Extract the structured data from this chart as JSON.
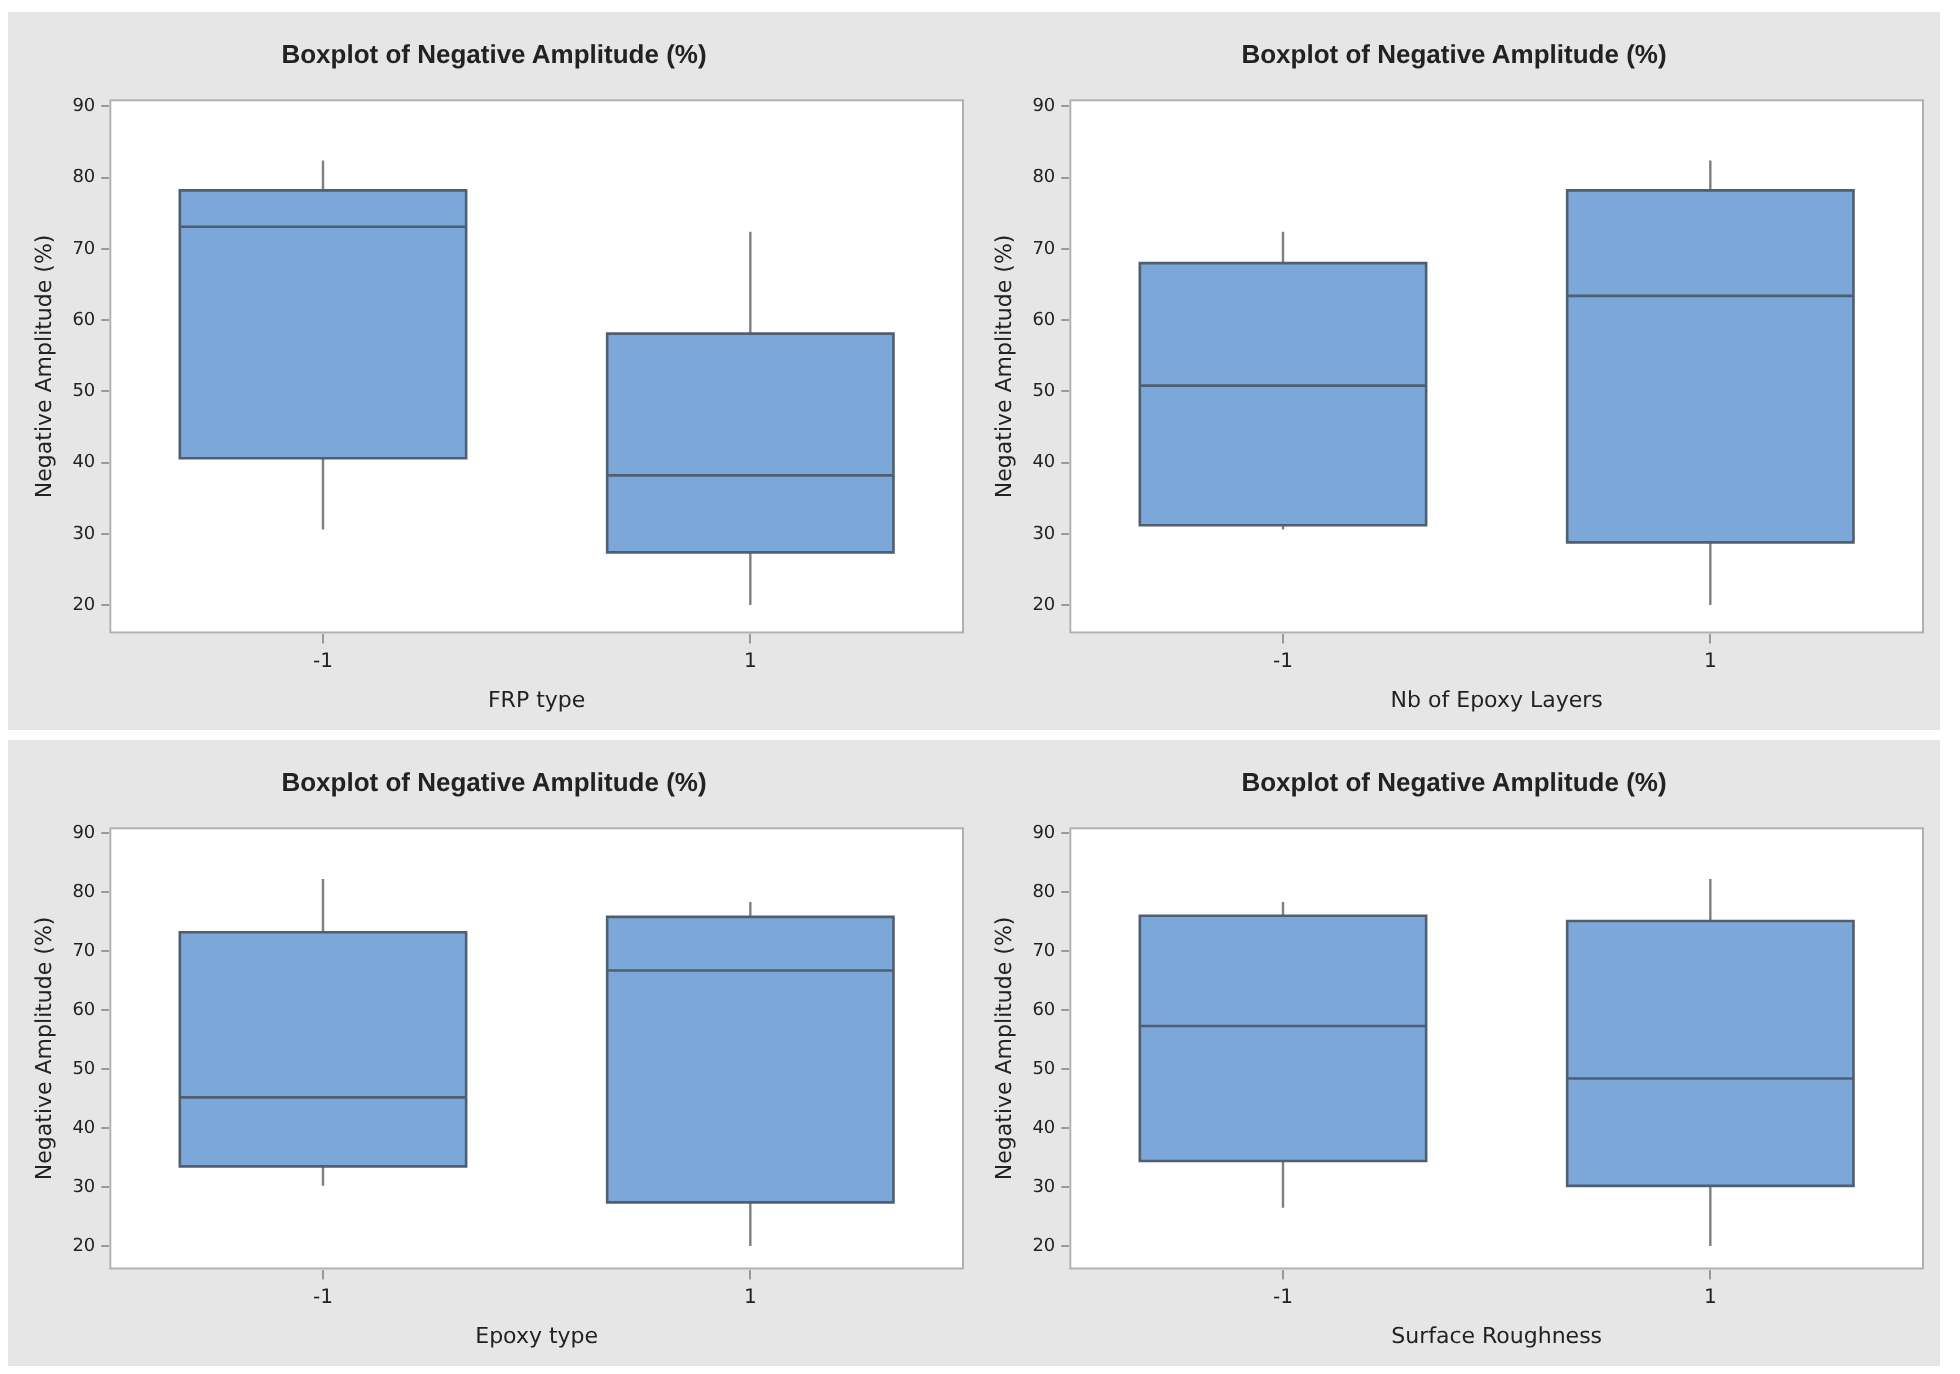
{
  "chart_data": [
    {
      "type": "box",
      "title": "Boxplot of Negative Amplitude (%)",
      "xlabel": "FRP type",
      "ylabel": "Negative Amplitude (%)",
      "categories": [
        "-1",
        "1"
      ],
      "ylim": [
        16,
        91
      ],
      "yticks": [
        20,
        30,
        40,
        50,
        60,
        70,
        80,
        90
      ],
      "grid": false,
      "legend": false,
      "series": [
        {
          "color": "#7ba7d9",
          "boxes": [
            {
              "low": 30.6,
              "q1": 40.6,
              "median": 73.1,
              "q3": 78.2,
              "high": 82.4
            },
            {
              "low": 20,
              "q1": 27.4,
              "median": 38.2,
              "q3": 58.1,
              "high": 72.4
            }
          ]
        }
      ]
    },
    {
      "type": "box",
      "title": "Boxplot of Negative Amplitude (%)",
      "xlabel": "Nb of Epoxy Layers",
      "ylabel": "Negative Amplitude (%)",
      "categories": [
        "-1",
        "1"
      ],
      "ylim": [
        16,
        91
      ],
      "yticks": [
        20,
        30,
        40,
        50,
        60,
        70,
        80,
        90
      ],
      "grid": false,
      "legend": false,
      "series": [
        {
          "color": "#7ba7d9",
          "boxes": [
            {
              "low": 30.6,
              "q1": 31.2,
              "median": 50.8,
              "q3": 68,
              "high": 72.4
            },
            {
              "low": 20,
              "q1": 28.8,
              "median": 63.4,
              "q3": 78.2,
              "high": 82.4
            }
          ]
        }
      ]
    },
    {
      "type": "box",
      "title": "Boxplot of Negative Amplitude (%)",
      "xlabel": "Epoxy type",
      "ylabel": "Negative Amplitude (%)",
      "categories": [
        "-1",
        "1"
      ],
      "ylim": [
        16,
        91
      ],
      "yticks": [
        20,
        30,
        40,
        50,
        60,
        70,
        80,
        90
      ],
      "grid": false,
      "legend": false,
      "series": [
        {
          "color": "#7ba7d9",
          "boxes": [
            {
              "low": 30.2,
              "q1": 33.5,
              "median": 45.2,
              "q3": 73.2,
              "high": 82.2
            },
            {
              "low": 20,
              "q1": 27.4,
              "median": 66.7,
              "q3": 75.8,
              "high": 78.3
            }
          ]
        }
      ]
    },
    {
      "type": "box",
      "title": "Boxplot of Negative Amplitude (%)",
      "xlabel": "Surface Roughness",
      "ylabel": "Negative Amplitude (%)",
      "categories": [
        "-1",
        "1"
      ],
      "ylim": [
        16,
        91
      ],
      "yticks": [
        20,
        30,
        40,
        50,
        60,
        70,
        80,
        90
      ],
      "grid": false,
      "legend": false,
      "series": [
        {
          "color": "#7ba7d9",
          "boxes": [
            {
              "low": 26.5,
              "q1": 34.4,
              "median": 57.3,
              "q3": 76,
              "high": 78.3
            },
            {
              "low": 20,
              "q1": 30.2,
              "median": 48.4,
              "q3": 75.1,
              "high": 82.2
            }
          ]
        }
      ]
    }
  ]
}
